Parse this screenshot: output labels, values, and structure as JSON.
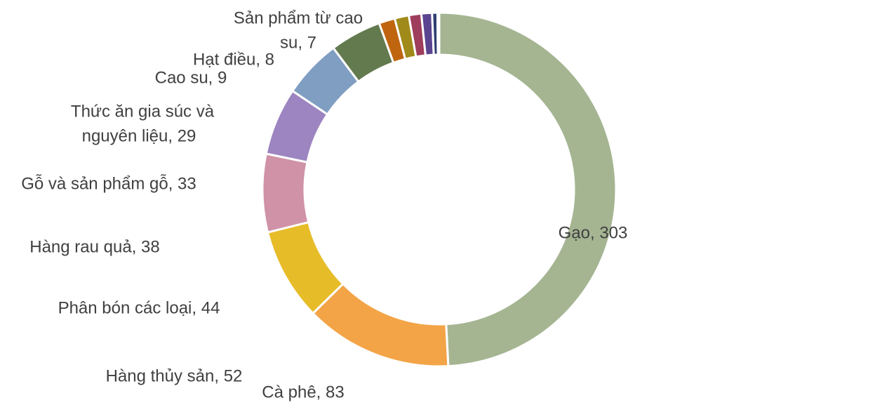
{
  "chart_data": {
    "type": "donut",
    "values": [
      303,
      83,
      52,
      44,
      38,
      33,
      29,
      9,
      8,
      7,
      6,
      3,
      1
    ],
    "value_labels": [
      [
        "Gạo, 303"
      ],
      [
        "Cà phê, 83"
      ],
      [
        "Hàng thủy sản, 52"
      ],
      [
        "Phân bón các loại, 44"
      ],
      [
        "Hàng rau quả, 38"
      ],
      [
        "Gỗ và sản phẩm gỗ, 33"
      ],
      [
        "Thức ăn gia súc và",
        "nguyên liệu, 29"
      ],
      [
        "Cao su, 9"
      ],
      [
        "Hạt điều, 8"
      ],
      [
        "Sản phẩm từ cao",
        "su, 7"
      ],
      null,
      null,
      null
    ],
    "colors": [
      "#a5b592",
      "#f3a447",
      "#e7bc29",
      "#d092a7",
      "#9c85c0",
      "#809ec2",
      "#637a4f",
      "#c0650f",
      "#a08a1a",
      "#9e3d5c",
      "#5c4590",
      "#2f3f70",
      "#8aa0c8"
    ]
  }
}
